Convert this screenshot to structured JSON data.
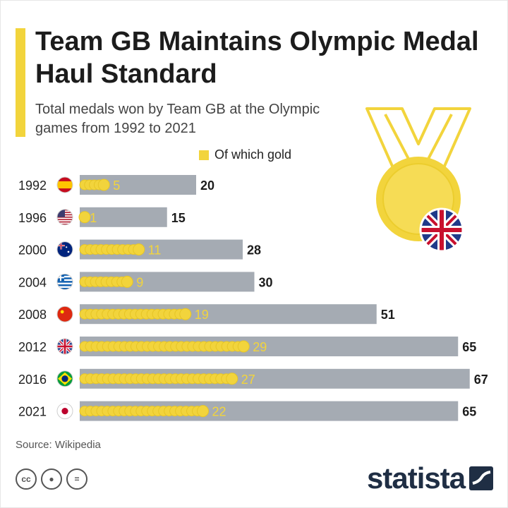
{
  "header": {
    "title": "Team GB Maintains Olympic Medal Haul Standard",
    "subtitle": "Total medals won by Team GB at the Olympic games from 1992 to 2021"
  },
  "legend": {
    "label": "Of which gold"
  },
  "footer": {
    "source": "Source: Wikipedia",
    "brand": "statista"
  },
  "colors": {
    "gold": "#f2d43c",
    "bar": "#a5abb3",
    "text": "#1c1c1c",
    "accent": "#f2d43c",
    "brand": "#1f2e44"
  },
  "chart_data": {
    "type": "bar",
    "orientation": "horizontal",
    "title": "Team GB Maintains Olympic Medal Haul Standard",
    "subtitle": "Total medals won by Team GB at the Olympic games from 1992 to 2021",
    "categories": [
      "1992",
      "1996",
      "2000",
      "2004",
      "2008",
      "2012",
      "2016",
      "2021"
    ],
    "flags": [
      "spain-flag-icon",
      "usa-flag-icon",
      "australia-flag-icon",
      "greece-flag-icon",
      "china-flag-icon",
      "uk-flag-icon",
      "brazil-flag-icon",
      "japan-flag-icon"
    ],
    "series": [
      {
        "name": "Total medals",
        "values": [
          20,
          15,
          28,
          30,
          51,
          65,
          67,
          65
        ]
      },
      {
        "name": "Of which gold",
        "values": [
          5,
          1,
          11,
          9,
          19,
          29,
          27,
          22
        ]
      }
    ],
    "xlim": [
      0,
      67
    ],
    "legend": "top-right"
  }
}
